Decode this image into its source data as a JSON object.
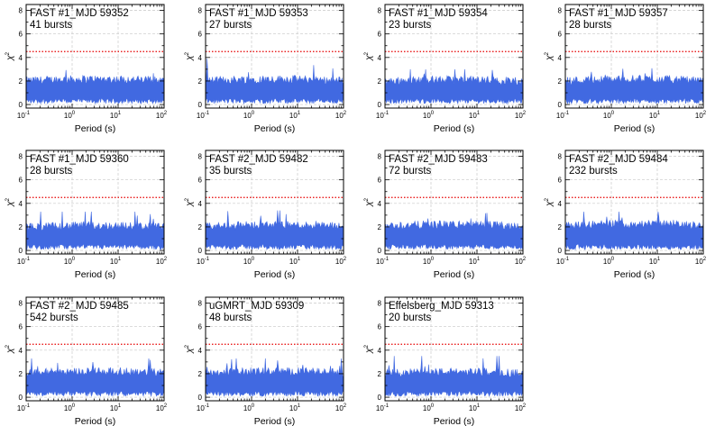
{
  "figure": {
    "xlabel": "Period (s)",
    "ylabel_base": "χ",
    "ylabel_exp": "2",
    "x_tick_base": "10",
    "x_tick_exponents": [
      "-1",
      "0",
      "1",
      "2"
    ],
    "y_tick_labels": [
      "0",
      "2",
      "4",
      "6",
      "8"
    ],
    "colors": {
      "series": "#4169e1",
      "threshold": "#e60000",
      "grid": "#c8c8c8"
    }
  },
  "chart_data": [
    {
      "type": "line",
      "label": "FAST #1_MJD 59352",
      "bursts": "41 bursts",
      "xscale": "log",
      "xlim": [
        0.1,
        100
      ],
      "ylim": [
        -0.3,
        8.5
      ],
      "threshold": 4.5,
      "chi2_mean": 1.25,
      "chi2_spread": 0.55,
      "chi2_peak": 3.3,
      "grid": true
    },
    {
      "type": "line",
      "label": "FAST #1_MJD 59353",
      "bursts": "27 bursts",
      "xscale": "log",
      "xlim": [
        0.1,
        100
      ],
      "ylim": [
        -0.3,
        8.5
      ],
      "threshold": 4.5,
      "chi2_mean": 1.25,
      "chi2_spread": 0.55,
      "chi2_peak": 3.9,
      "grid": true
    },
    {
      "type": "line",
      "label": "FAST #1_MJD 59354",
      "bursts": "23 bursts",
      "xscale": "log",
      "xlim": [
        0.1,
        100
      ],
      "ylim": [
        -0.3,
        8.5
      ],
      "threshold": 4.5,
      "chi2_mean": 1.2,
      "chi2_spread": 0.55,
      "chi2_peak": 3.0,
      "grid": true
    },
    {
      "type": "line",
      "label": "FAST #1_MJD 59357",
      "bursts": "28 bursts",
      "xscale": "log",
      "xlim": [
        0.1,
        100
      ],
      "ylim": [
        -0.3,
        8.5
      ],
      "threshold": 4.5,
      "chi2_mean": 1.25,
      "chi2_spread": 0.55,
      "chi2_peak": 3.2,
      "grid": true
    },
    {
      "type": "line",
      "label": "FAST #1_MJD 59360",
      "bursts": "28 bursts",
      "xscale": "log",
      "xlim": [
        0.1,
        100
      ],
      "ylim": [
        -0.3,
        8.5
      ],
      "threshold": 4.5,
      "chi2_mean": 1.2,
      "chi2_spread": 0.55,
      "chi2_peak": 3.3,
      "grid": true
    },
    {
      "type": "line",
      "label": "FAST #2_MJD 59482",
      "bursts": "35 bursts",
      "xscale": "log",
      "xlim": [
        0.1,
        100
      ],
      "ylim": [
        -0.3,
        8.5
      ],
      "threshold": 4.5,
      "chi2_mean": 1.25,
      "chi2_spread": 0.55,
      "chi2_peak": 3.4,
      "grid": true
    },
    {
      "type": "line",
      "label": "FAST #2_MJD 59483",
      "bursts": "72 bursts",
      "xscale": "log",
      "xlim": [
        0.1,
        100
      ],
      "ylim": [
        -0.3,
        8.5
      ],
      "threshold": 4.5,
      "chi2_mean": 1.3,
      "chi2_spread": 0.55,
      "chi2_peak": 3.2,
      "grid": true
    },
    {
      "type": "line",
      "label": "FAST #2_MJD 59484",
      "bursts": "232 bursts",
      "xscale": "log",
      "xlim": [
        0.1,
        100
      ],
      "ylim": [
        -0.3,
        8.5
      ],
      "threshold": 4.5,
      "chi2_mean": 1.35,
      "chi2_spread": 0.55,
      "chi2_peak": 3.3,
      "grid": true
    },
    {
      "type": "line",
      "label": "FAST #2_MJD 59485",
      "bursts": "542 bursts",
      "xscale": "log",
      "xlim": [
        0.1,
        100
      ],
      "ylim": [
        -0.3,
        8.5
      ],
      "threshold": 4.5,
      "chi2_mean": 1.3,
      "chi2_spread": 0.55,
      "chi2_peak": 3.3,
      "grid": true
    },
    {
      "type": "line",
      "label": "uGMRT_MJD 59309",
      "bursts": "48 bursts",
      "xscale": "log",
      "xlim": [
        0.1,
        100
      ],
      "ylim": [
        -0.3,
        8.5
      ],
      "threshold": 4.5,
      "chi2_mean": 1.3,
      "chi2_spread": 0.55,
      "chi2_peak": 3.3,
      "grid": true
    },
    {
      "type": "line",
      "label": "Effelsberg_MJD 59313",
      "bursts": "20 bursts",
      "xscale": "log",
      "xlim": [
        0.1,
        100
      ],
      "ylim": [
        -0.3,
        8.5
      ],
      "threshold": 4.5,
      "chi2_mean": 1.25,
      "chi2_spread": 0.55,
      "chi2_peak": 3.5,
      "grid": true
    }
  ]
}
